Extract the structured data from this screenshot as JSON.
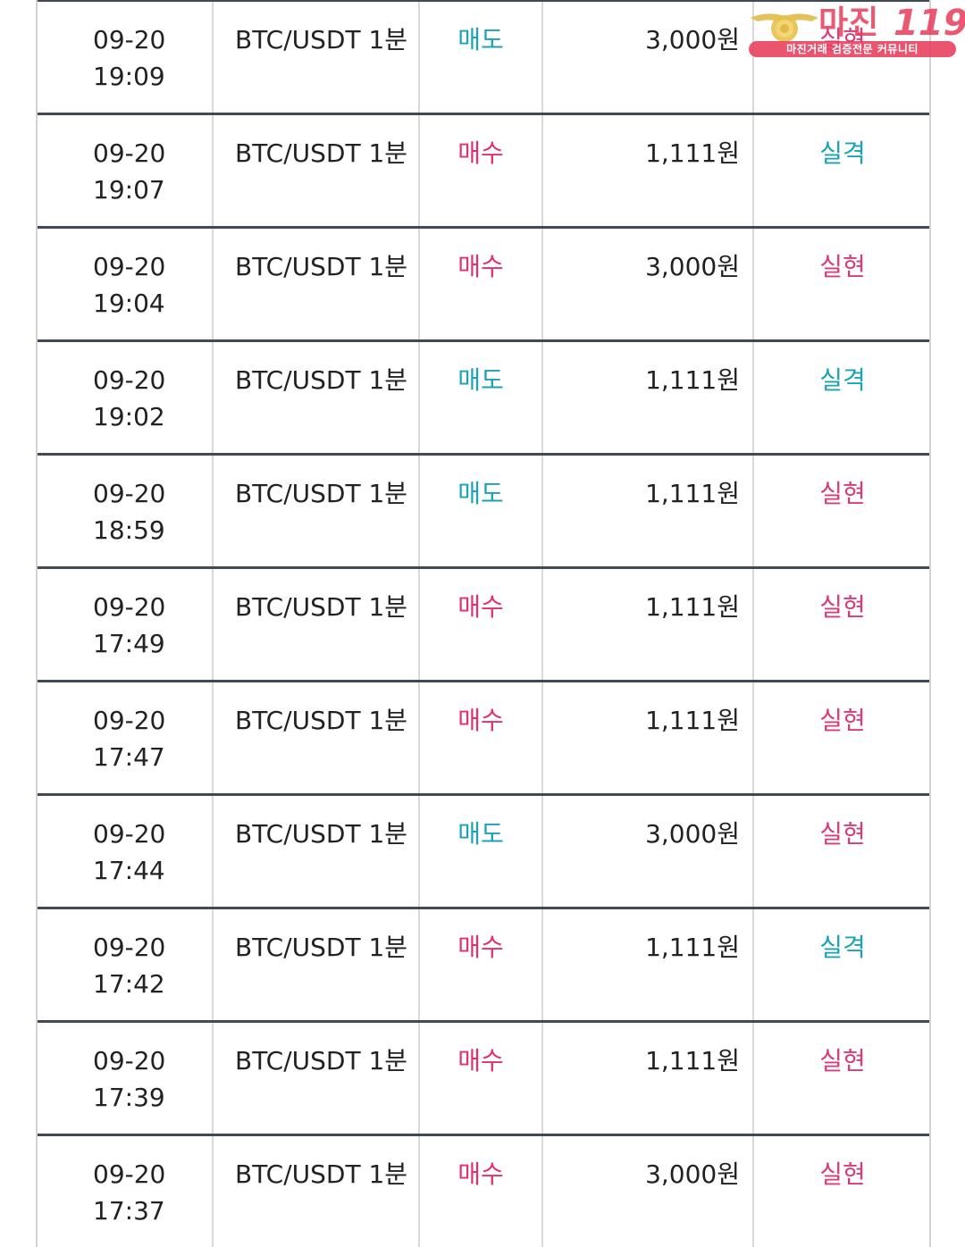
{
  "trades": [
    {
      "date": "09-20",
      "time": "19:09",
      "pair": "BTC/USDT 1분",
      "side": "매도",
      "side_type": "sell",
      "amount": "3,000원",
      "result": "실현",
      "result_type": "win"
    },
    {
      "date": "09-20",
      "time": "19:07",
      "pair": "BTC/USDT 1분",
      "side": "매수",
      "side_type": "buy",
      "amount": "1,111원",
      "result": "실격",
      "result_type": "lose"
    },
    {
      "date": "09-20",
      "time": "19:04",
      "pair": "BTC/USDT 1분",
      "side": "매수",
      "side_type": "buy",
      "amount": "3,000원",
      "result": "실현",
      "result_type": "win"
    },
    {
      "date": "09-20",
      "time": "19:02",
      "pair": "BTC/USDT 1분",
      "side": "매도",
      "side_type": "sell",
      "amount": "1,111원",
      "result": "실격",
      "result_type": "lose"
    },
    {
      "date": "09-20",
      "time": "18:59",
      "pair": "BTC/USDT 1분",
      "side": "매도",
      "side_type": "sell",
      "amount": "1,111원",
      "result": "실현",
      "result_type": "win"
    },
    {
      "date": "09-20",
      "time": "17:49",
      "pair": "BTC/USDT 1분",
      "side": "매수",
      "side_type": "buy",
      "amount": "1,111원",
      "result": "실현",
      "result_type": "win"
    },
    {
      "date": "09-20",
      "time": "17:47",
      "pair": "BTC/USDT 1분",
      "side": "매수",
      "side_type": "buy",
      "amount": "1,111원",
      "result": "실현",
      "result_type": "win"
    },
    {
      "date": "09-20",
      "time": "17:44",
      "pair": "BTC/USDT 1분",
      "side": "매도",
      "side_type": "sell",
      "amount": "3,000원",
      "result": "실현",
      "result_type": "win"
    },
    {
      "date": "09-20",
      "time": "17:42",
      "pair": "BTC/USDT 1분",
      "side": "매수",
      "side_type": "buy",
      "amount": "1,111원",
      "result": "실격",
      "result_type": "lose"
    },
    {
      "date": "09-20",
      "time": "17:39",
      "pair": "BTC/USDT 1분",
      "side": "매수",
      "side_type": "buy",
      "amount": "1,111원",
      "result": "실현",
      "result_type": "win"
    },
    {
      "date": "09-20",
      "time": "17:37",
      "pair": "BTC/USDT 1분",
      "side": "매수",
      "side_type": "buy",
      "amount": "3,000원",
      "result": "실현",
      "result_type": "win"
    }
  ],
  "watermark": {
    "title": "마진",
    "number": "119",
    "tagline": "마진거래 검증전문 커뮤니티"
  },
  "colors": {
    "sell": "#1aa3b3",
    "buy": "#e0306f",
    "win": "#d93a7a",
    "lose": "#1aa3b3",
    "row_border": "#3f4a55",
    "col_border": "#d9d9d9",
    "brand": "#e83c5a"
  }
}
